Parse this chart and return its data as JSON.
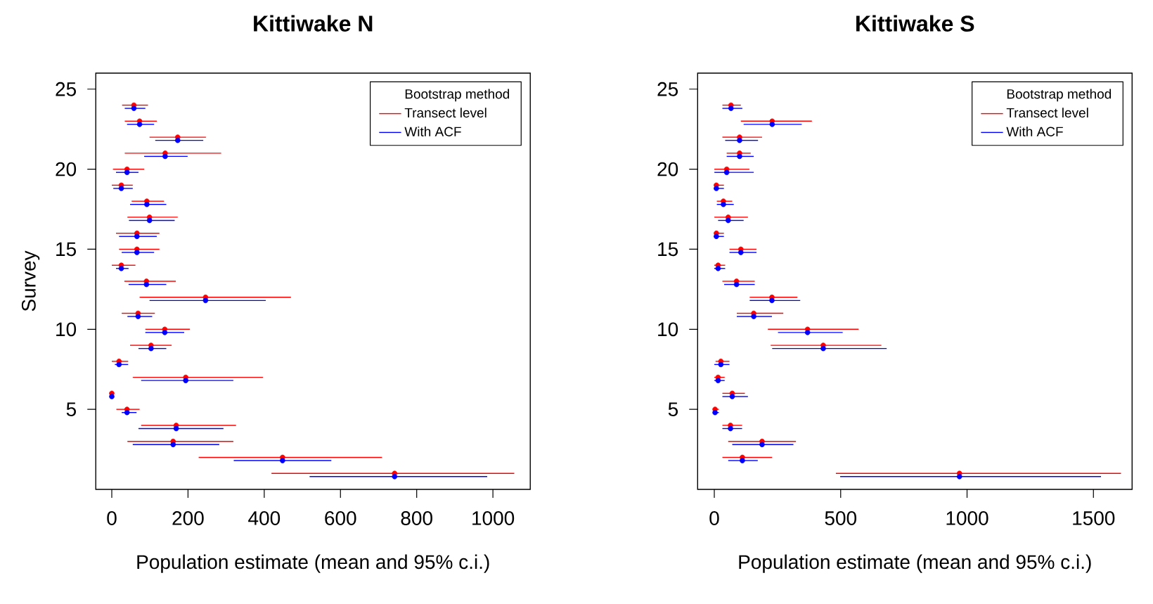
{
  "chart_data": [
    {
      "type": "scatter",
      "title": "Kittiwake N",
      "xlabel": "Population estimate (mean and 95% c.i.)",
      "ylabel": "Survey",
      "legend": "top right",
      "legend_title": "Bootstrap method",
      "marker": "circle",
      "xlim": [
        -42,
        1098
      ],
      "ylim": [
        0,
        26
      ],
      "xticks": [
        0,
        200,
        400,
        600,
        800,
        1000
      ],
      "yticks": [
        5,
        10,
        15,
        20,
        25
      ],
      "series": [
        {
          "name": "Transect level",
          "color": "#ff0000",
          "x": [
            58,
            73,
            173,
            140,
            40,
            25,
            92,
            99,
            66,
            66,
            25,
            91,
            246,
            69,
            139,
            103,
            19,
            194,
            0,
            40,
            169,
            161,
            448,
            742
          ],
          "values": [
            24,
            23,
            22,
            21,
            20,
            19,
            18,
            17,
            16,
            15,
            14,
            13,
            12,
            11,
            10,
            9,
            8,
            7,
            6,
            5,
            4,
            3,
            2,
            1
          ],
          "xerrors": [
            [
              27,
              95
            ],
            [
              34,
              118
            ],
            [
              99,
              247
            ],
            [
              34,
              287
            ],
            [
              3,
              85
            ],
            [
              0,
              55
            ],
            [
              52,
              137
            ],
            [
              41,
              173
            ],
            [
              11,
              125
            ],
            [
              19,
              125
            ],
            [
              0,
              62
            ],
            [
              33,
              168
            ],
            [
              73,
              470
            ],
            [
              26,
              113
            ],
            [
              88,
              205
            ],
            [
              48,
              157
            ],
            [
              0,
              43
            ],
            [
              55,
              397
            ],
            [
              0,
              0
            ],
            [
              12,
              73
            ],
            [
              77,
              326
            ],
            [
              41,
              319
            ],
            [
              228,
              709
            ],
            [
              419,
              1056
            ]
          ]
        },
        {
          "name": "With ACF",
          "color": "#0000ff",
          "x": [
            58,
            73,
            173,
            140,
            40,
            25,
            92,
            99,
            66,
            66,
            25,
            91,
            246,
            69,
            139,
            103,
            19,
            194,
            0,
            40,
            169,
            161,
            448,
            742
          ],
          "values": [
            23.8,
            22.8,
            21.8,
            20.8,
            19.8,
            18.8,
            17.8,
            16.8,
            15.8,
            14.8,
            13.8,
            12.8,
            11.8,
            10.8,
            9.8,
            8.8,
            7.8,
            6.8,
            5.8,
            4.8,
            3.8,
            2.8,
            1.8,
            0.8
          ],
          "xerrors": [
            [
              34,
              88
            ],
            [
              40,
              111
            ],
            [
              114,
              240
            ],
            [
              85,
              199
            ],
            [
              11,
              70
            ],
            [
              4,
              55
            ],
            [
              48,
              143
            ],
            [
              45,
              165
            ],
            [
              19,
              118
            ],
            [
              26,
              111
            ],
            [
              11,
              44
            ],
            [
              44,
              143
            ],
            [
              99,
              404
            ],
            [
              41,
              106
            ],
            [
              88,
              190
            ],
            [
              70,
              143
            ],
            [
              8,
              43
            ],
            [
              77,
              319
            ],
            [
              0,
              0
            ],
            [
              26,
              65
            ],
            [
              70,
              293
            ],
            [
              55,
              282
            ],
            [
              320,
              576
            ],
            [
              519,
              985
            ]
          ]
        }
      ]
    },
    {
      "type": "scatter",
      "title": "Kittiwake S",
      "xlabel": "Population estimate (mean and 95% c.i.)",
      "legend": "top right",
      "legend_title": "Bootstrap method",
      "marker": "circle",
      "xlim": [
        -66,
        1653
      ],
      "ylim": [
        0,
        26
      ],
      "xticks": [
        0,
        500,
        1000,
        1500
      ],
      "yticks": [
        5,
        10,
        15,
        20,
        25
      ],
      "series": [
        {
          "name": "Transect level",
          "color": "#ff0000",
          "x": [
            66,
            229,
            100,
            100,
            49,
            8,
            36,
            55,
            8,
            105,
            15,
            88,
            228,
            156,
            369,
            431,
            26,
            15,
            71,
            3,
            64,
            189,
            111,
            970
          ],
          "values": [
            24,
            23,
            22,
            21,
            20,
            19,
            18,
            17,
            16,
            15,
            14,
            13,
            12,
            11,
            10,
            9,
            8,
            7,
            6,
            5,
            4,
            3,
            2,
            1
          ],
          "xerrors": [
            [
              32,
              105
            ],
            [
              105,
              386
            ],
            [
              32,
              189
            ],
            [
              49,
              144
            ],
            [
              0,
              139
            ],
            [
              0,
              38
            ],
            [
              10,
              71
            ],
            [
              0,
              133
            ],
            [
              0,
              38
            ],
            [
              60,
              167
            ],
            [
              0,
              43
            ],
            [
              32,
              160
            ],
            [
              140,
              329
            ],
            [
              89,
              273
            ],
            [
              212,
              571
            ],
            [
              223,
              661
            ],
            [
              5,
              60
            ],
            [
              0,
              41
            ],
            [
              32,
              121
            ],
            [
              0,
              18
            ],
            [
              32,
              110
            ],
            [
              55,
              323
            ],
            [
              32,
              229
            ],
            [
              481,
              1609
            ]
          ]
        },
        {
          "name": "With ACF",
          "color": "#0000ff",
          "x": [
            66,
            229,
            100,
            100,
            49,
            8,
            36,
            55,
            8,
            105,
            15,
            88,
            228,
            156,
            369,
            431,
            26,
            15,
            71,
            3,
            64,
            189,
            111,
            970
          ],
          "values": [
            23.8,
            22.8,
            21.8,
            20.8,
            19.8,
            18.8,
            17.8,
            16.8,
            15.8,
            14.8,
            13.8,
            12.8,
            11.8,
            10.8,
            9.8,
            8.8,
            7.8,
            6.8,
            5.8,
            4.8,
            3.8,
            2.8,
            1.8,
            0.8
          ],
          "xerrors": [
            [
              32,
              111
            ],
            [
              116,
              346
            ],
            [
              43,
              173
            ],
            [
              49,
              156
            ],
            [
              0,
              156
            ],
            [
              0,
              38
            ],
            [
              10,
              77
            ],
            [
              15,
              116
            ],
            [
              0,
              38
            ],
            [
              60,
              167
            ],
            [
              0,
              43
            ],
            [
              39,
              160
            ],
            [
              140,
              340
            ],
            [
              89,
              228
            ],
            [
              252,
              508
            ],
            [
              229,
              682
            ],
            [
              0,
              60
            ],
            [
              0,
              41
            ],
            [
              32,
              133
            ],
            [
              0,
              18
            ],
            [
              32,
              110
            ],
            [
              71,
              313
            ],
            [
              55,
              172
            ],
            [
              498,
              1530
            ]
          ]
        }
      ]
    }
  ]
}
